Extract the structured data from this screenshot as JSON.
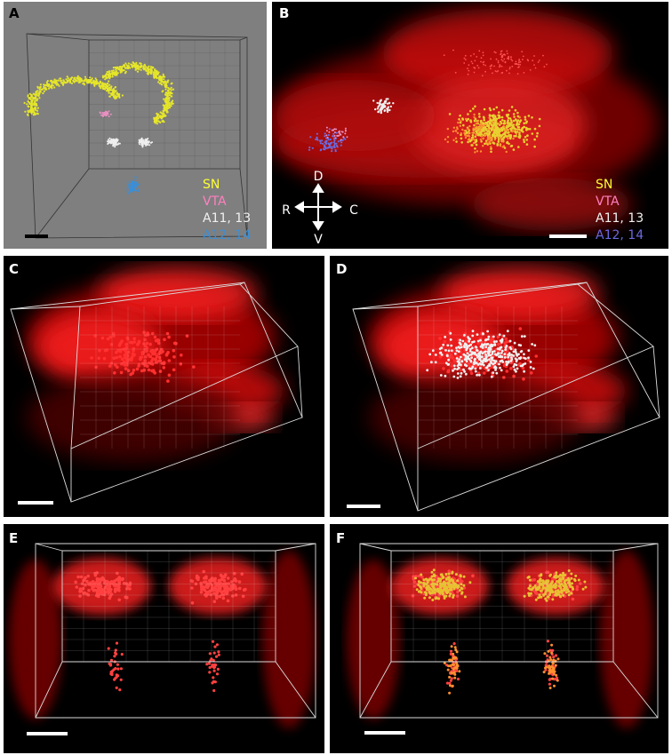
{
  "panels": [
    {
      "label": "A",
      "legend": [
        "SN",
        "VTA",
        "A11, 13",
        "A12, 14"
      ]
    },
    {
      "label": "B",
      "legend": [
        "SN",
        "VTA",
        "A11, 13",
        "A12, 14"
      ],
      "orientation": {
        "dorsal": "D",
        "ventral": "V",
        "rostral": "R",
        "caudal": "C"
      }
    },
    {
      "label": "C"
    },
    {
      "label": "D"
    },
    {
      "label": "E"
    },
    {
      "label": "F"
    }
  ]
}
